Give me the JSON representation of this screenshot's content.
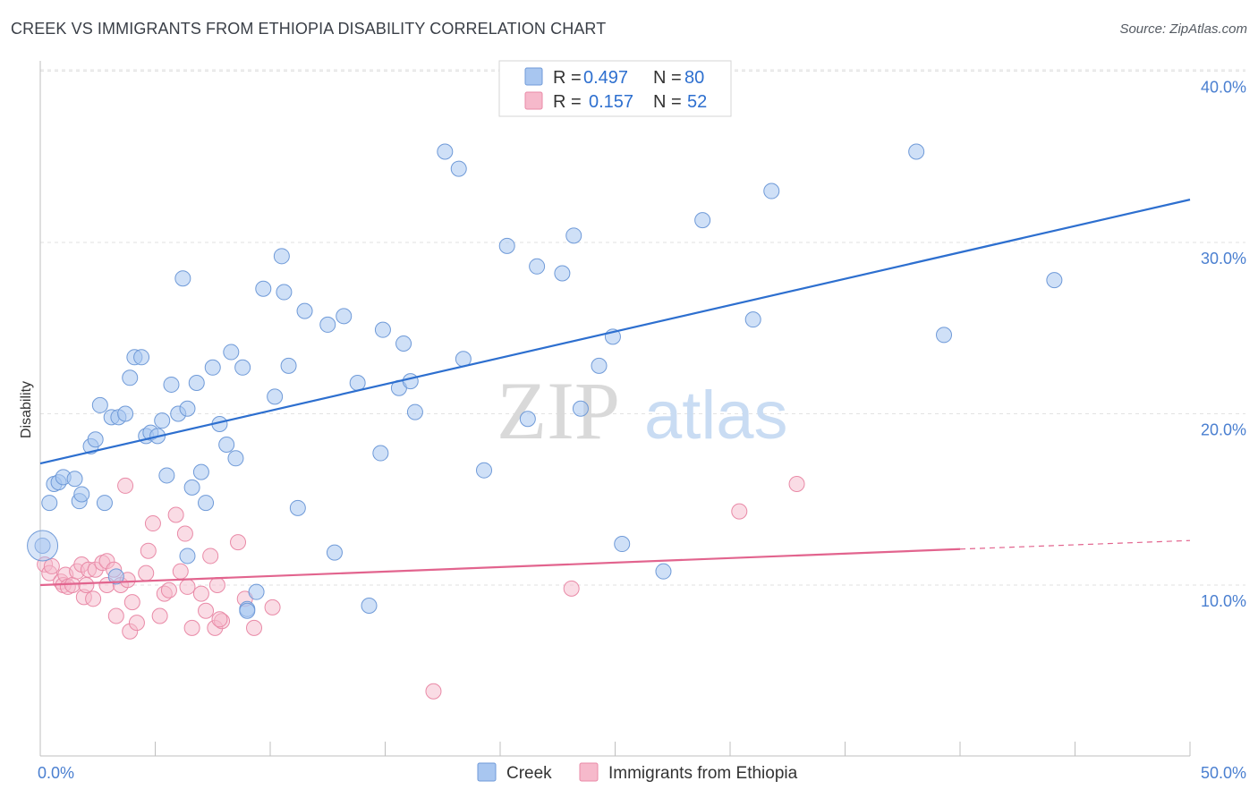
{
  "title": "CREEK VS IMMIGRANTS FROM ETHIOPIA DISABILITY CORRELATION CHART",
  "source": "Source: ZipAtlas.com",
  "watermark": {
    "zip": "ZIP",
    "atlas": "atlas"
  },
  "legend_top": {
    "creek": {
      "r_label": "R =",
      "r_value": "0.497",
      "n_label": "N =",
      "n_value": "80"
    },
    "ethiopia": {
      "r_label": "R =",
      "r_value": "0.157",
      "n_label": "N =",
      "n_value": "52"
    }
  },
  "legend_bottom": {
    "creek": "Creek",
    "ethiopia": "Immigrants from Ethiopia"
  },
  "colors": {
    "creek_fill": "#a8c6f0",
    "creek_stroke": "#6f9ad8",
    "creek_line": "#2d6fcf",
    "eth_fill": "#f6b9cb",
    "eth_stroke": "#e98aa7",
    "eth_line": "#e2648e",
    "axis_text": "#4a7fd0",
    "grid": "#e2e2e2"
  },
  "chart_data": {
    "type": "scatter",
    "title": "CREEK VS IMMIGRANTS FROM ETHIOPIA DISABILITY CORRELATION CHART",
    "xlabel": "",
    "ylabel": "Disability",
    "xlim": [
      0,
      50
    ],
    "ylim": [
      0,
      42
    ],
    "x_tick_labels": [
      {
        "value": 0,
        "label": "0.0%"
      },
      {
        "value": 50,
        "label": "50.0%"
      }
    ],
    "y_tick_labels": [
      {
        "value": 10,
        "label": "10.0%"
      },
      {
        "value": 20,
        "label": "20.0%"
      },
      {
        "value": 30,
        "label": "30.0%"
      },
      {
        "value": 40,
        "label": "40.0%"
      }
    ],
    "series": [
      {
        "name": "Creek",
        "trend": {
          "x": [
            0,
            50
          ],
          "y": [
            17.1,
            32.5
          ]
        },
        "points": [
          [
            0.4,
            14.8
          ],
          [
            0.6,
            15.9
          ],
          [
            0.8,
            16.0
          ],
          [
            1.0,
            16.3
          ],
          [
            1.5,
            16.2
          ],
          [
            1.7,
            14.9
          ],
          [
            1.8,
            15.3
          ],
          [
            2.2,
            18.1
          ],
          [
            2.4,
            18.5
          ],
          [
            2.6,
            20.5
          ],
          [
            2.8,
            14.8
          ],
          [
            3.1,
            19.8
          ],
          [
            3.3,
            10.5
          ],
          [
            3.4,
            19.8
          ],
          [
            3.7,
            20.0
          ],
          [
            3.9,
            22.1
          ],
          [
            4.1,
            23.3
          ],
          [
            4.4,
            23.3
          ],
          [
            4.6,
            18.7
          ],
          [
            4.8,
            18.9
          ],
          [
            5.1,
            18.7
          ],
          [
            5.3,
            19.6
          ],
          [
            5.5,
            16.4
          ],
          [
            5.7,
            21.7
          ],
          [
            6.0,
            20.0
          ],
          [
            6.2,
            27.9
          ],
          [
            6.4,
            20.3
          ],
          [
            6.6,
            15.7
          ],
          [
            6.8,
            21.8
          ],
          [
            7.0,
            16.6
          ],
          [
            7.2,
            14.8
          ],
          [
            7.5,
            22.7
          ],
          [
            7.8,
            19.4
          ],
          [
            8.1,
            18.2
          ],
          [
            8.3,
            23.6
          ],
          [
            8.5,
            17.4
          ],
          [
            8.8,
            22.7
          ],
          [
            9.0,
            8.6
          ],
          [
            9.4,
            9.6
          ],
          [
            9.7,
            27.3
          ],
          [
            10.2,
            21.0
          ],
          [
            10.5,
            29.2
          ],
          [
            10.6,
            27.1
          ],
          [
            10.8,
            22.8
          ],
          [
            11.2,
            14.5
          ],
          [
            11.5,
            26.0
          ],
          [
            12.5,
            25.2
          ],
          [
            12.8,
            11.9
          ],
          [
            13.2,
            25.7
          ],
          [
            13.8,
            21.8
          ],
          [
            14.3,
            8.8
          ],
          [
            14.8,
            17.7
          ],
          [
            14.9,
            24.9
          ],
          [
            15.6,
            21.5
          ],
          [
            15.8,
            24.1
          ],
          [
            16.1,
            21.9
          ],
          [
            16.3,
            20.1
          ],
          [
            17.6,
            35.3
          ],
          [
            18.2,
            34.3
          ],
          [
            18.4,
            23.2
          ],
          [
            19.3,
            16.7
          ],
          [
            20.3,
            29.8
          ],
          [
            21.2,
            19.7
          ],
          [
            21.6,
            28.6
          ],
          [
            22.7,
            28.2
          ],
          [
            23.2,
            30.4
          ],
          [
            23.5,
            20.3
          ],
          [
            24.3,
            22.8
          ],
          [
            24.9,
            24.5
          ],
          [
            25.3,
            12.4
          ],
          [
            27.1,
            10.8
          ],
          [
            28.8,
            31.3
          ],
          [
            31.0,
            25.5
          ],
          [
            31.8,
            33.0
          ],
          [
            38.1,
            35.3
          ],
          [
            39.3,
            24.6
          ],
          [
            44.1,
            27.8
          ],
          [
            0.1,
            12.3
          ],
          [
            9.0,
            8.5
          ],
          [
            6.4,
            11.7
          ]
        ]
      },
      {
        "name": "Immigrants from Ethiopia",
        "trend": {
          "x": [
            0,
            40
          ],
          "y": [
            10.0,
            12.1
          ]
        },
        "trend_dashed": {
          "x": [
            40,
            50
          ],
          "y": [
            12.1,
            12.6
          ]
        },
        "points": [
          [
            0.2,
            11.2
          ],
          [
            0.4,
            10.7
          ],
          [
            0.5,
            11.1
          ],
          [
            0.9,
            10.2
          ],
          [
            1.0,
            10.0
          ],
          [
            1.1,
            10.6
          ],
          [
            1.2,
            9.9
          ],
          [
            1.4,
            10.0
          ],
          [
            1.6,
            10.8
          ],
          [
            1.8,
            11.2
          ],
          [
            1.9,
            9.3
          ],
          [
            2.0,
            10.0
          ],
          [
            2.1,
            10.9
          ],
          [
            2.3,
            9.2
          ],
          [
            2.4,
            10.9
          ],
          [
            2.7,
            11.3
          ],
          [
            2.9,
            10.0
          ],
          [
            2.9,
            11.4
          ],
          [
            3.2,
            10.9
          ],
          [
            3.3,
            8.2
          ],
          [
            3.5,
            10.0
          ],
          [
            3.7,
            15.8
          ],
          [
            3.8,
            10.3
          ],
          [
            3.9,
            7.3
          ],
          [
            4.0,
            9.0
          ],
          [
            4.2,
            7.8
          ],
          [
            4.7,
            12.0
          ],
          [
            4.6,
            10.7
          ],
          [
            4.9,
            13.6
          ],
          [
            5.2,
            8.2
          ],
          [
            5.4,
            9.5
          ],
          [
            5.6,
            9.7
          ],
          [
            5.9,
            14.1
          ],
          [
            6.1,
            10.8
          ],
          [
            6.3,
            13.0
          ],
          [
            6.4,
            9.9
          ],
          [
            6.6,
            7.5
          ],
          [
            7.0,
            9.5
          ],
          [
            7.2,
            8.5
          ],
          [
            7.4,
            11.7
          ],
          [
            7.6,
            7.5
          ],
          [
            7.7,
            10.0
          ],
          [
            7.9,
            7.9
          ],
          [
            8.6,
            12.5
          ],
          [
            8.9,
            9.2
          ],
          [
            9.3,
            7.5
          ],
          [
            10.1,
            8.7
          ],
          [
            17.1,
            3.8
          ],
          [
            23.1,
            9.8
          ],
          [
            30.4,
            14.3
          ],
          [
            32.9,
            15.9
          ],
          [
            7.8,
            8.0
          ]
        ]
      }
    ]
  }
}
